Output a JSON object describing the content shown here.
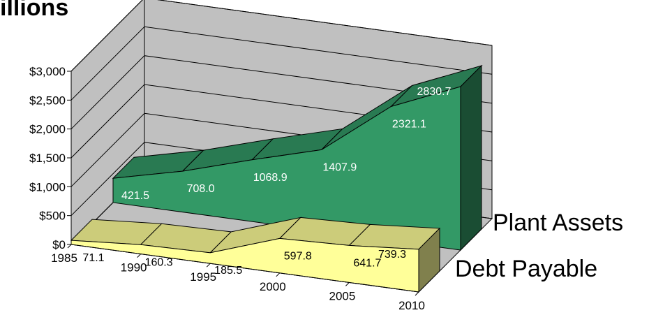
{
  "chart_data": {
    "type": "area",
    "title": "illions",
    "x": [
      1985,
      1990,
      1995,
      2000,
      2005,
      2010
    ],
    "x_tick_labels": [
      "1985",
      "1990",
      "1995",
      "2000",
      "2005",
      "2010"
    ],
    "y_tick_labels": [
      "$0",
      "$500",
      "$1,000",
      "$1,500",
      "$2,000",
      "$2,500",
      "$3,000"
    ],
    "ylim": [
      0,
      3000
    ],
    "grid": true,
    "series": [
      {
        "name": "Plant Assets",
        "x": [
          1985,
          1990,
          1995,
          2000,
          2005,
          2010
        ],
        "values": [
          421.5,
          708.0,
          1068.9,
          1407.9,
          2321.1,
          2830.7
        ],
        "data_labels": [
          "421.5",
          "708.0",
          "1068.9",
          "1407.9",
          "2321.1",
          "2830.7"
        ],
        "color": "#339966"
      },
      {
        "name": "Debt Payable",
        "x": [
          1985,
          1990,
          1995,
          2000,
          2005,
          2010
        ],
        "values": [
          71.1,
          160.3,
          185.5,
          597.8,
          641.7,
          739.3
        ],
        "data_labels": [
          "71.1",
          "160.3",
          "185.5",
          "597.8",
          "641.7",
          "739.3"
        ],
        "color": "#ffff99"
      }
    ],
    "wall_color": "#c0c0c0"
  }
}
